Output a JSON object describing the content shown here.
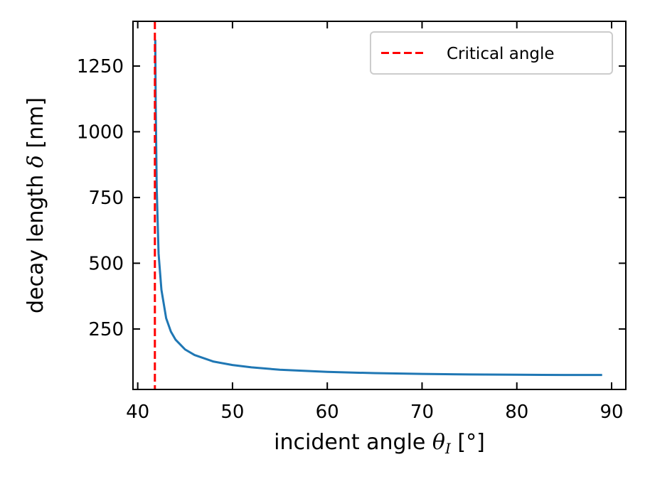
{
  "chart_data": {
    "type": "line",
    "xlabel": {
      "prefix": "incident angle ",
      "symbol": "θ",
      "subscript": "I",
      "suffix": " [°]"
    },
    "ylabel": {
      "prefix": "decay length ",
      "symbol": "δ",
      "suffix": " [nm]"
    },
    "xlim": [
      39.5,
      91.5
    ],
    "ylim": [
      20,
      1420
    ],
    "xticks": [
      40,
      50,
      60,
      70,
      80,
      90
    ],
    "yticks": [
      250,
      500,
      750,
      1000,
      1250
    ],
    "xtick_labels": [
      "40",
      "50",
      "60",
      "70",
      "80",
      "90"
    ],
    "ytick_labels": [
      "250",
      "500",
      "750",
      "1000",
      "1250"
    ],
    "grid": false,
    "legend_position": "top-right",
    "series": [
      {
        "name": "",
        "color": "#1f77b4",
        "style": "solid",
        "x": [
          41.85,
          41.9,
          42.0,
          42.2,
          42.5,
          43.0,
          43.5,
          44.0,
          45.0,
          46.0,
          48.0,
          50.0,
          52.0,
          55.0,
          60.0,
          65.0,
          70.0,
          75.0,
          80.0,
          85.0,
          89.0
        ],
        "y": [
          1350,
          1100,
          792,
          537,
          399,
          291,
          240,
          209,
          172,
          151,
          126,
          113,
          104,
          95,
          87,
          82,
          79,
          77,
          76,
          75,
          75
        ]
      },
      {
        "name": "Critical angle",
        "color": "#ff0000",
        "style": "dashed",
        "vline_x": 41.81
      }
    ]
  }
}
